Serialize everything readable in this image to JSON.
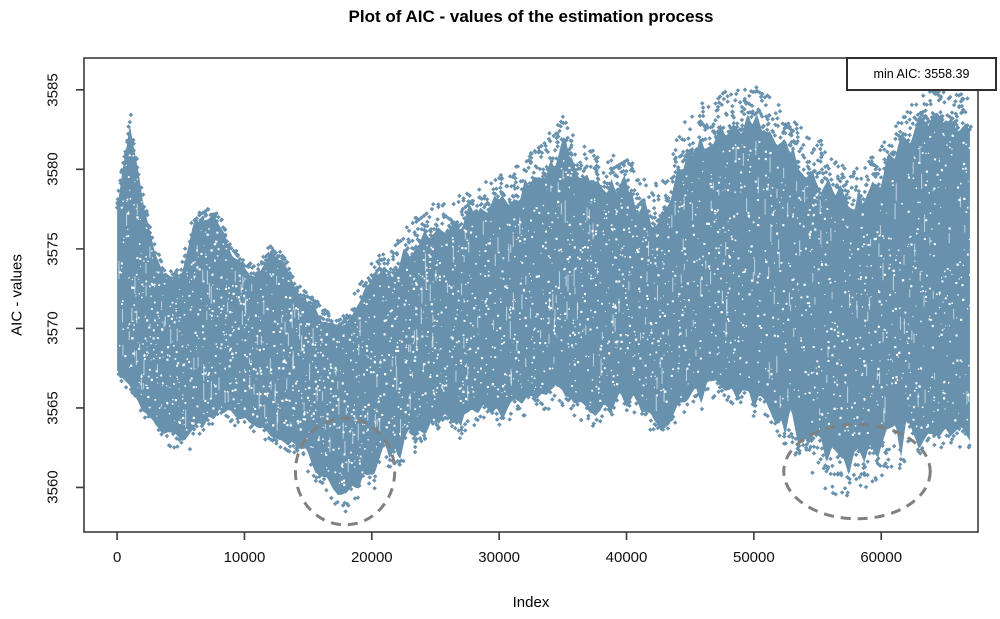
{
  "figure": {
    "background": "#ffffff"
  },
  "chart_data": {
    "type": "scatter",
    "title": "Plot of AIC - values of the estimation process",
    "xlabel": "Index",
    "ylabel": "AIC - values",
    "point_color": "#6791ad",
    "axis_color": "#3c3c3c",
    "tick_text_color": "#111111",
    "grid": "off",
    "legend": {
      "label": "min AIC: 3558.39",
      "position": "topright"
    },
    "min_aic": 3558.39,
    "x_ticks": [
      0,
      10000,
      20000,
      30000,
      40000,
      50000,
      60000
    ],
    "x_tick_labels": [
      "0",
      "10000",
      "20000",
      "30000",
      "40000",
      "50000",
      "60000"
    ],
    "y_ticks": [
      3560,
      3565,
      3570,
      3575,
      3580,
      3585
    ],
    "y_tick_labels": [
      "3560",
      "3565",
      "3570",
      "3575",
      "3580",
      "3585"
    ],
    "xlim": [
      -2600,
      67600
    ],
    "ylim": [
      3557.2,
      3587.0
    ],
    "x_range_data": [
      0,
      67000
    ],
    "envelope": {
      "x_start": 0,
      "x_step": 1000,
      "top": [
        3578.0,
        3583.5,
        3578.5,
        3575.0,
        3573.5,
        3573.8,
        3577.0,
        3577.6,
        3577.2,
        3575.3,
        3574.2,
        3573.8,
        3575.3,
        3574.8,
        3573.2,
        3572.2,
        3571.4,
        3570.9,
        3571.0,
        3572.6,
        3574.3,
        3574.8,
        3575.7,
        3576.5,
        3577.6,
        3577.8,
        3578.1,
        3578.4,
        3578.8,
        3579.2,
        3579.6,
        3580.0,
        3580.6,
        3581.4,
        3582.3,
        3583.4,
        3582.4,
        3581.3,
        3580.7,
        3580.9,
        3581.2,
        3579.8,
        3579.2,
        3579.6,
        3582.0,
        3583.6,
        3584.2,
        3584.6,
        3584.9,
        3585.0,
        3585.2,
        3584.8,
        3584.2,
        3583.4,
        3582.6,
        3581.8,
        3581.2,
        3580.8,
        3580.4,
        3580.9,
        3581.6,
        3582.6,
        3583.6,
        3584.6,
        3585.3,
        3585.1,
        3584.8,
        3584.5
      ],
      "bottom": [
        3567.0,
        3566.0,
        3564.5,
        3563.5,
        3562.5,
        3562.0,
        3562.5,
        3563.5,
        3564.0,
        3564.0,
        3563.8,
        3563.2,
        3562.8,
        3562.3,
        3561.8,
        3561.0,
        3559.8,
        3558.9,
        3558.5,
        3559.2,
        3560.6,
        3561.6,
        3561.0,
        3562.3,
        3563.0,
        3563.6,
        3563.9,
        3563.3,
        3563.8,
        3564.2,
        3564.0,
        3564.2,
        3564.4,
        3564.7,
        3565.0,
        3565.2,
        3564.2,
        3563.6,
        3563.9,
        3564.6,
        3565.0,
        3564.4,
        3563.4,
        3562.8,
        3564.0,
        3564.8,
        3565.2,
        3565.5,
        3565.3,
        3565.0,
        3564.8,
        3564.2,
        3563.2,
        3562.2,
        3561.2,
        3560.4,
        3559.8,
        3558.9,
        3559.4,
        3560.0,
        3560.6,
        3561.0,
        3561.4,
        3561.8,
        3562.2,
        3562.6,
        3562.4,
        3562.2
      ],
      "core_top": [
        3577.5,
        3582.8,
        3578.0,
        3574.2,
        3572.7,
        3573.0,
        3576.2,
        3576.8,
        3576.4,
        3574.5,
        3573.4,
        3573.0,
        3574.5,
        3574.0,
        3572.4,
        3571.4,
        3570.4,
        3569.9,
        3570.0,
        3571.6,
        3573.3,
        3573.8,
        3573.7,
        3574.5,
        3575.6,
        3575.8,
        3576.1,
        3576.4,
        3576.8,
        3577.2,
        3577.6,
        3577.5,
        3578.1,
        3578.9,
        3579.8,
        3580.9,
        3579.9,
        3578.8,
        3578.2,
        3578.4,
        3578.7,
        3576.8,
        3576.2,
        3576.6,
        3579.0,
        3580.6,
        3581.2,
        3581.6,
        3581.9,
        3582.0,
        3582.2,
        3581.8,
        3581.2,
        3580.4,
        3579.6,
        3578.8,
        3578.2,
        3577.8,
        3577.4,
        3577.9,
        3578.6,
        3580.1,
        3581.1,
        3582.1,
        3582.8,
        3582.6,
        3582.3,
        3582.0
      ],
      "core_bottom": [
        3567.5,
        3566.5,
        3565.0,
        3564.0,
        3563.7,
        3563.2,
        3563.7,
        3564.3,
        3564.8,
        3564.8,
        3564.6,
        3564.0,
        3563.6,
        3563.1,
        3563.3,
        3562.5,
        3561.1,
        3560.2,
        3559.8,
        3560.5,
        3561.9,
        3563.1,
        3562.5,
        3563.8,
        3564.3,
        3564.9,
        3565.2,
        3564.6,
        3565.1,
        3565.5,
        3565.3,
        3565.5,
        3565.7,
        3566.0,
        3566.3,
        3566.5,
        3565.5,
        3564.9,
        3565.2,
        3565.9,
        3566.3,
        3565.7,
        3564.7,
        3564.1,
        3565.3,
        3566.1,
        3566.5,
        3566.8,
        3566.6,
        3566.3,
        3566.1,
        3565.5,
        3564.5,
        3565.2,
        3564.2,
        3563.4,
        3562.8,
        3561.9,
        3562.4,
        3563.0,
        3563.6,
        3564.0,
        3564.4,
        3563.3,
        3563.7,
        3564.1,
        3563.9,
        3563.7
      ]
    },
    "annotations": {
      "circles": [
        {
          "cx": 17900,
          "cy": 3561.0,
          "rx": 3900,
          "ry": 3.35,
          "color": "#808080",
          "style": "dashed"
        },
        {
          "cx": 58100,
          "cy": 3561.0,
          "rx": 5750,
          "ry": 2.97,
          "color": "#808080",
          "style": "dashed"
        }
      ]
    }
  }
}
